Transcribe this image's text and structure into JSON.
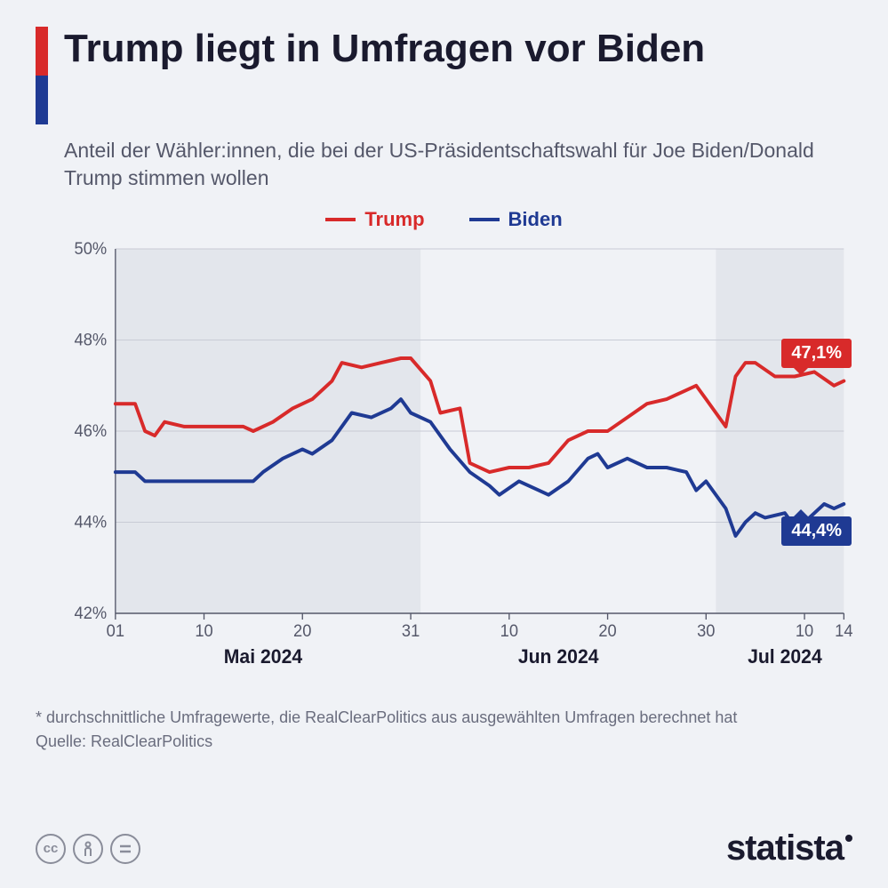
{
  "colors": {
    "trump": "#d82a2a",
    "biden": "#1f3a93",
    "bg": "#f0f2f6",
    "text_dark": "#1a1a2e",
    "text_muted": "#55586a",
    "grid": "#c8cbd5"
  },
  "title": "Trump liegt in Umfragen vor Biden",
  "subtitle": "Anteil der Wähler:innen, die bei der US-Präsidentschaftswahl für Joe Biden/Donald Trump stimmen wollen",
  "legend": {
    "trump": "Trump",
    "biden": "Biden"
  },
  "chart": {
    "type": "line",
    "ylim": [
      42,
      50
    ],
    "yticks": [
      42,
      44,
      46,
      48,
      50
    ],
    "ylabels": [
      "42%",
      "44%",
      "46%",
      "48%",
      "50%"
    ],
    "xlim": [
      0,
      74
    ],
    "xticks_days": [
      {
        "x": 0,
        "label": "01"
      },
      {
        "x": 9,
        "label": "10"
      },
      {
        "x": 19,
        "label": "20"
      },
      {
        "x": 30,
        "label": "31"
      },
      {
        "x": 40,
        "label": "10"
      },
      {
        "x": 50,
        "label": "20"
      },
      {
        "x": 60,
        "label": "30"
      },
      {
        "x": 70,
        "label": "10"
      },
      {
        "x": 74,
        "label": "14"
      }
    ],
    "xticks_months": [
      {
        "x": 15,
        "label": "Mai 2024"
      },
      {
        "x": 45,
        "label": "Jun 2024"
      },
      {
        "x": 68,
        "label": "Jul 2024"
      }
    ],
    "shaded_regions": [
      [
        0,
        31
      ],
      [
        61,
        74
      ]
    ],
    "series": {
      "trump": [
        [
          0,
          46.6
        ],
        [
          2,
          46.6
        ],
        [
          3,
          46.0
        ],
        [
          4,
          45.9
        ],
        [
          5,
          46.2
        ],
        [
          7,
          46.1
        ],
        [
          10,
          46.1
        ],
        [
          13,
          46.1
        ],
        [
          14,
          46.0
        ],
        [
          16,
          46.2
        ],
        [
          18,
          46.5
        ],
        [
          20,
          46.7
        ],
        [
          22,
          47.1
        ],
        [
          23,
          47.5
        ],
        [
          25,
          47.4
        ],
        [
          27,
          47.5
        ],
        [
          29,
          47.6
        ],
        [
          30,
          47.6
        ],
        [
          32,
          47.1
        ],
        [
          33,
          46.4
        ],
        [
          35,
          46.5
        ],
        [
          36,
          45.3
        ],
        [
          38,
          45.1
        ],
        [
          40,
          45.2
        ],
        [
          42,
          45.2
        ],
        [
          44,
          45.3
        ],
        [
          46,
          45.8
        ],
        [
          48,
          46.0
        ],
        [
          50,
          46.0
        ],
        [
          52,
          46.3
        ],
        [
          54,
          46.6
        ],
        [
          56,
          46.7
        ],
        [
          58,
          46.9
        ],
        [
          59,
          47.0
        ],
        [
          60,
          46.7
        ],
        [
          62,
          46.1
        ],
        [
          63,
          47.2
        ],
        [
          64,
          47.5
        ],
        [
          65,
          47.5
        ],
        [
          67,
          47.2
        ],
        [
          69,
          47.2
        ],
        [
          71,
          47.3
        ],
        [
          73,
          47.0
        ],
        [
          74,
          47.1
        ]
      ],
      "biden": [
        [
          0,
          45.1
        ],
        [
          2,
          45.1
        ],
        [
          3,
          44.9
        ],
        [
          5,
          44.9
        ],
        [
          8,
          44.9
        ],
        [
          12,
          44.9
        ],
        [
          14,
          44.9
        ],
        [
          15,
          45.1
        ],
        [
          17,
          45.4
        ],
        [
          19,
          45.6
        ],
        [
          20,
          45.5
        ],
        [
          22,
          45.8
        ],
        [
          24,
          46.4
        ],
        [
          26,
          46.3
        ],
        [
          28,
          46.5
        ],
        [
          29,
          46.7
        ],
        [
          30,
          46.4
        ],
        [
          32,
          46.2
        ],
        [
          34,
          45.6
        ],
        [
          36,
          45.1
        ],
        [
          38,
          44.8
        ],
        [
          39,
          44.6
        ],
        [
          41,
          44.9
        ],
        [
          43,
          44.7
        ],
        [
          44,
          44.6
        ],
        [
          46,
          44.9
        ],
        [
          48,
          45.4
        ],
        [
          49,
          45.5
        ],
        [
          50,
          45.2
        ],
        [
          52,
          45.4
        ],
        [
          54,
          45.2
        ],
        [
          56,
          45.2
        ],
        [
          58,
          45.1
        ],
        [
          59,
          44.7
        ],
        [
          60,
          44.9
        ],
        [
          62,
          44.3
        ],
        [
          63,
          43.7
        ],
        [
          64,
          44.0
        ],
        [
          65,
          44.2
        ],
        [
          66,
          44.1
        ],
        [
          68,
          44.2
        ],
        [
          69,
          43.9
        ],
        [
          70,
          44.0
        ],
        [
          72,
          44.4
        ],
        [
          73,
          44.3
        ],
        [
          74,
          44.4
        ]
      ]
    },
    "callouts": {
      "trump": "47,1%",
      "biden": "44,4%"
    },
    "line_width": 4
  },
  "footnote": "* durchschnittliche Umfragewerte, die RealClearPolitics aus ausgewählten Umfragen berechnet hat",
  "source_label": "Quelle: RealClearPolitics",
  "brand": "statista"
}
